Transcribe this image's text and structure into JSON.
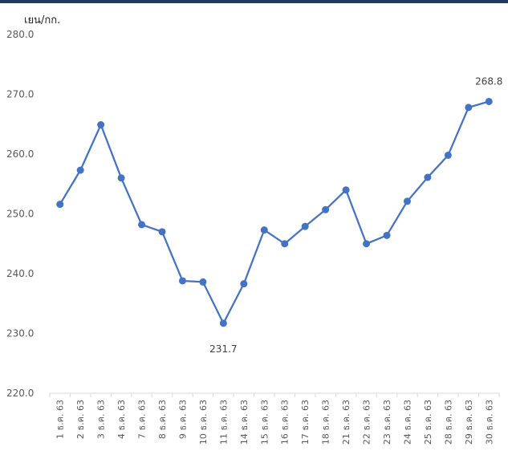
{
  "chart_data": {
    "type": "line",
    "ylabel": "เยน/กก.",
    "xlabel": "",
    "ylim": [
      220,
      280
    ],
    "yticks": [
      "220.0",
      "230.0",
      "240.0",
      "250.0",
      "260.0",
      "270.0",
      "280.0"
    ],
    "grid": false,
    "categories": [
      "1 ธ.ค. 63",
      "2 ธ.ค. 63",
      "3 ธ.ค. 63",
      "4 ธ.ค. 63",
      "7 ธ.ค. 63",
      "8 ธ.ค. 63",
      "9 ธ.ค. 63",
      "10 ธ.ค. 63",
      "11 ธ.ค. 63",
      "14 ธ.ค. 63",
      "15 ธ.ค. 63",
      "16 ธ.ค. 63",
      "17 ธ.ค. 63",
      "18 ธ.ค. 63",
      "21 ธ.ค. 63",
      "22 ธ.ค. 63",
      "23 ธ.ค. 63",
      "24 ธ.ค. 63",
      "25 ธ.ค. 63",
      "28 ธ.ค. 63",
      "29 ธ.ค. 63",
      "30 ธ.ค. 63"
    ],
    "series": [
      {
        "values": [
          251.6,
          257.3,
          264.9,
          256.0,
          248.2,
          247.0,
          238.8,
          238.6,
          231.7,
          238.3,
          247.3,
          245.0,
          247.9,
          250.7,
          254.0,
          245.0,
          246.4,
          252.1,
          256.1,
          259.8,
          267.8,
          268.8
        ],
        "color": "#4472c4"
      }
    ],
    "data_labels": [
      {
        "index": 8,
        "text": "231.7",
        "position": "below"
      },
      {
        "index": 21,
        "text": "268.8",
        "position": "above"
      }
    ]
  }
}
